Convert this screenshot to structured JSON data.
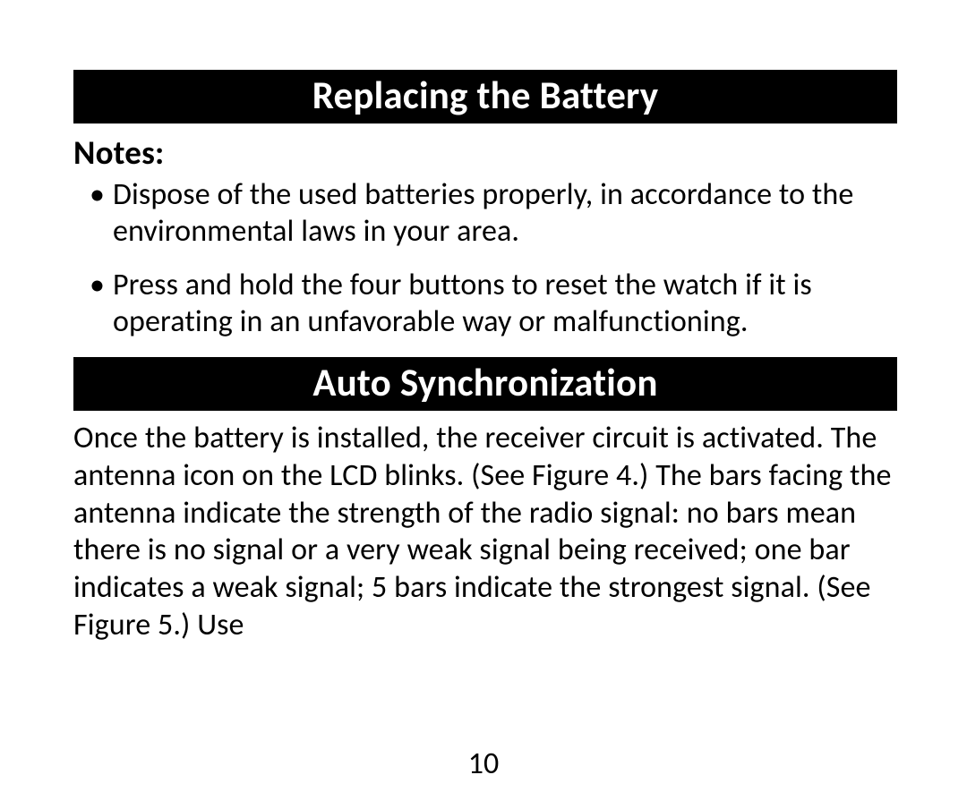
{
  "colors": {
    "page_bg": "#ffffff",
    "header_bg": "#000000",
    "header_text": "#ffffff",
    "body_text": "#000000"
  },
  "typography": {
    "header_fontsize_pt": 32,
    "header_fontweight": "600",
    "notes_label_fontsize_pt": 28,
    "notes_label_fontweight": "700",
    "body_fontsize_pt": 26,
    "page_number_fontsize_pt": 26,
    "font_family": "Optima / humanist sans-serif"
  },
  "sections": {
    "battery": {
      "title": "Replacing the Battery",
      "notes_label": "Notes:",
      "bullets": [
        "Dispose of the used batteries properly, in accordance to the environmental laws in your area.",
        "Press and hold the four buttons to reset the watch if it is operating in an unfavorable way or malfunctioning."
      ]
    },
    "autosync": {
      "title": "Auto Synchronization",
      "paragraph": "Once the battery is installed, the receiver circuit is activated. The antenna icon on the LCD blinks. (See Figure 4.) The bars facing the antenna indicate the strength of the radio signal: no bars mean there is no signal or a very weak signal being received; one bar indicates a weak signal; 5 bars indicate the strongest signal. (See Figure 5.) Use"
    }
  },
  "page_number": "10"
}
